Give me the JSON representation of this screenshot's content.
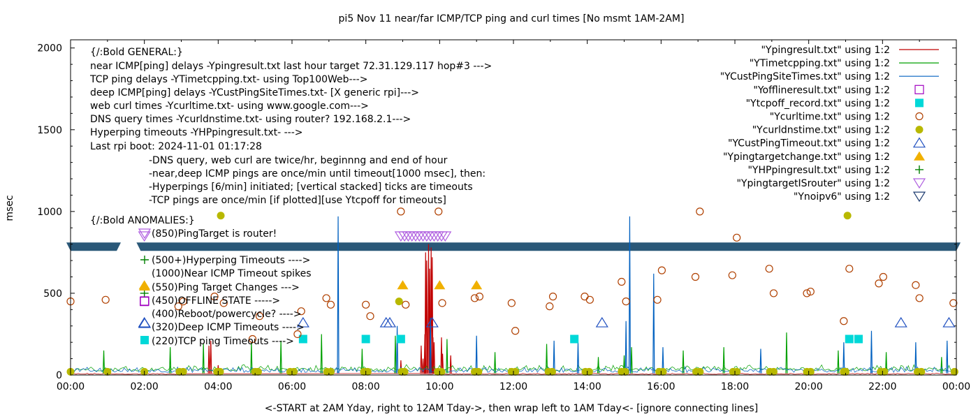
{
  "chart_data": {
    "type": "scatter",
    "title": "pi5 Nov 11  near/far ICMP/TCP ping and curl times [No msmt 1AM-2AM]",
    "xlabel": "<-START at 2AM Yday, right to 12AM Tday->, then wrap left to 1AM Tday<- [ignore connecting lines]",
    "ylabel": "msec",
    "x_unit": "hours",
    "xlim": [
      0,
      24
    ],
    "ylim": [
      0,
      2050
    ],
    "x_tick_labels": [
      "00:00",
      "02:00",
      "04:00",
      "06:00",
      "08:00",
      "10:00",
      "12:00",
      "14:00",
      "16:00",
      "18:00",
      "20:00",
      "22:00",
      "00:00"
    ],
    "y_tick_labels": [
      "0",
      "500",
      "1000",
      "1500",
      "2000"
    ],
    "y_ticks": [
      0,
      500,
      1000,
      1500,
      2000
    ],
    "legend_position": "top-right",
    "annotations": [
      "{/:Bold GENERAL:}",
      "near ICMP[ping] delays -Ypingresult.txt last hour target 72.31.129.117 hop#3 --->",
      "TCP ping delays -YTimetcpping.txt- using Top100Web--->",
      "deep ICMP[ping] delays -YCustPingSiteTimes.txt- [X generic rpi]--->",
      "web curl times -Ycurltime.txt- using www.google.com--->",
      "DNS query times -Ycurldnstime.txt- using router? 192.168.2.1--->",
      "Hyperping timeouts -YHPpingresult.txt- --->",
      "Last rpi boot: 2024-11-01 01:17:28",
      "-DNS query, web curl are twice/hr, beginnng and end of hour",
      "-near,deep ICMP pings are once/min until timeout[1000 msec], then:",
      "  -Hyperpings [6/min] initiated; [vertical stacked] ticks are timeouts",
      "-TCP pings are once/min [if plotted][use Ytcpoff for timeouts]",
      "{/:Bold ANOMALIES:}",
      "(850)PingTarget is router!",
      "(500+)Hyperping Timeouts ---->",
      "(1000)Near ICMP Timeout spikes",
      "(550)Ping Target Changes --->",
      "(450)OFFLINE STATE ----->",
      "(400)Reboot/powercycle? ---->",
      "(320)Deep ICMP Timeouts ---->",
      "(220)TCP ping Timeouts ---->"
    ],
    "series": [
      {
        "name": "\"Ypingresult.txt\" using 1:2",
        "kind": "line",
        "color": "#c00000",
        "x": [
          9.5,
          9.55,
          9.6,
          9.62,
          9.65,
          9.7,
          9.73,
          9.77,
          9.8,
          9.82,
          9.85,
          10.05,
          10.08,
          3.75,
          3.8,
          4.0,
          8.95,
          10.3
        ],
        "y": [
          180,
          100,
          250,
          750,
          700,
          800,
          650,
          780,
          720,
          230,
          200,
          230,
          130,
          180,
          210,
          60,
          90,
          120
        ]
      },
      {
        "name": "\"YTimetcpping.txt\" using 1:2",
        "kind": "line",
        "color": "#00a000",
        "x": [
          0.9,
          2.7,
          3.6,
          4.9,
          5.7,
          6.8,
          7.9,
          8.8,
          10.2,
          11.5,
          12.9,
          14.3,
          15.0,
          15.2,
          16.6,
          17.7,
          19.4,
          20.8,
          22.1,
          23.6
        ],
        "y": [
          150,
          170,
          190,
          200,
          210,
          250,
          160,
          240,
          220,
          140,
          190,
          110,
          120,
          170,
          150,
          170,
          260,
          150,
          140,
          110
        ]
      },
      {
        "name": "\"YCustPingSiteTimes.txt\" using 1:2",
        "kind": "line",
        "color": "#0060c0",
        "x": [
          7.25,
          8.85,
          9.75,
          11.0,
          13.1,
          13.75,
          15.05,
          15.15,
          15.8,
          16.05,
          18.7,
          20.95,
          21.7,
          22.9,
          23.75
        ],
        "y": [
          970,
          300,
          350,
          240,
          210,
          200,
          330,
          970,
          620,
          170,
          160,
          200,
          270,
          200,
          210
        ]
      },
      {
        "name": "\"Yofflineresult.txt\" using 1:2",
        "kind": "open-square",
        "color": "#a000c0",
        "x": [
          2.0
        ],
        "y": [
          450
        ]
      },
      {
        "name": "\"Ytcpoff_record.txt\" using 1:2",
        "kind": "filled-square",
        "color": "#00d8d8",
        "x": [
          6.3,
          8.0,
          8.95,
          13.65,
          21.1,
          21.35
        ],
        "y": [
          220,
          220,
          220,
          220,
          220,
          220
        ]
      },
      {
        "name": "\"Ycurltime.txt\" using 1:2",
        "kind": "open-circle",
        "color": "#b04000",
        "x": [
          0.0,
          0.95,
          2.92,
          3.05,
          3.9,
          4.15,
          4.93,
          5.12,
          6.15,
          6.25,
          6.93,
          7.05,
          8.0,
          8.12,
          8.95,
          9.08,
          9.97,
          10.07,
          10.95,
          11.08,
          11.95,
          12.05,
          12.98,
          13.07,
          13.93,
          14.07,
          14.93,
          15.05,
          15.9,
          16.02,
          16.93,
          17.05,
          17.93,
          18.05,
          18.93,
          19.05,
          19.95,
          20.05,
          20.95,
          21.1,
          21.9,
          22.02,
          22.9,
          23.0,
          23.92
        ],
        "y": [
          450,
          460,
          420,
          450,
          480,
          440,
          220,
          360,
          250,
          390,
          470,
          430,
          430,
          360,
          1000,
          430,
          1000,
          440,
          470,
          480,
          440,
          270,
          420,
          480,
          480,
          460,
          570,
          450,
          460,
          640,
          600,
          1000,
          610,
          840,
          650,
          500,
          500,
          510,
          330,
          650,
          560,
          600,
          550,
          470,
          440
        ]
      },
      {
        "name": "\"Ycurldnstime.txt\" using 1:2",
        "kind": "filled-circle",
        "color": "#b8b800",
        "x": [
          0.0,
          1.0,
          2.0,
          2.95,
          3.05,
          3.97,
          4.05,
          5.0,
          5.08,
          5.95,
          6.05,
          6.95,
          7.05,
          7.95,
          8.05,
          8.9,
          8.97,
          9.05,
          9.95,
          10.05,
          10.95,
          11.05,
          11.95,
          12.05,
          12.95,
          13.05,
          13.95,
          14.05,
          14.93,
          15.03,
          15.95,
          16.05,
          16.95,
          17.05,
          17.95,
          18.05,
          18.95,
          19.05,
          19.95,
          20.05,
          20.95,
          21.0,
          21.95,
          22.05,
          22.95,
          23.05,
          23.95,
          4.07,
          21.05
        ],
        "y": [
          20,
          20,
          20,
          20,
          20,
          20,
          20,
          20,
          20,
          20,
          20,
          20,
          20,
          20,
          20,
          450,
          20,
          20,
          20,
          20,
          20,
          20,
          20,
          20,
          20,
          20,
          20,
          20,
          20,
          20,
          20,
          20,
          20,
          20,
          20,
          20,
          20,
          20,
          20,
          20,
          20,
          20,
          20,
          20,
          20,
          20,
          20,
          975,
          975
        ]
      },
      {
        "name": "\"YCustPingTimeout.txt\" using 1:2",
        "kind": "open-triangle-up",
        "color": "#2050c0",
        "x": [
          2.0,
          6.3,
          8.55,
          8.65,
          9.8,
          14.4,
          22.5,
          23.8
        ],
        "y": [
          320,
          320,
          320,
          320,
          320,
          320,
          320,
          320
        ]
      },
      {
        "name": "\"Ypingtargetchange.txt\" using 1:2",
        "kind": "filled-triangle-up",
        "color": "#f0b000",
        "x": [
          2.0,
          9.0,
          10.0,
          11.0
        ],
        "y": [
          550,
          550,
          550,
          550
        ]
      },
      {
        "name": "\"YHPpingresult.txt\" using 1:2",
        "kind": "plus",
        "color": "#008000",
        "x": [
          2.0
        ],
        "y": [
          500
        ]
      },
      {
        "name": "\"YpingtargetISrouter\" using 1:2",
        "kind": "open-triangle-down",
        "color": "#b060e0",
        "x": [
          2.0,
          8.95,
          9.05,
          9.15,
          9.25,
          9.35,
          9.45,
          9.55,
          9.65,
          9.75,
          9.85,
          9.95,
          10.05,
          10.15
        ],
        "y": [
          850,
          850,
          850,
          850,
          850,
          850,
          850,
          850,
          850,
          850,
          850,
          850,
          850,
          850
        ]
      },
      {
        "name": "\"Ynoipv6\" using 1:2",
        "kind": "open-triangle-down",
        "color": "#1e3c70",
        "x": [
          2.0
        ],
        "y": [
          785
        ]
      }
    ],
    "band": {
      "name": "\"Ynoipv6\" using 1:2",
      "y": 785,
      "color": "#2a5878",
      "gaps_x": [
        [
          1.25,
          1.9
        ]
      ]
    }
  }
}
